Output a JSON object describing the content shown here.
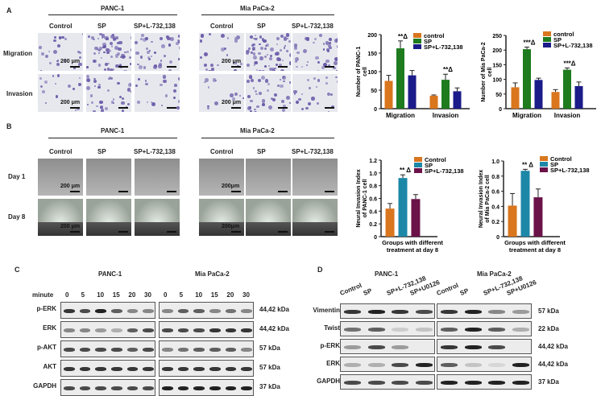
{
  "panels": {
    "a": "A",
    "b": "B",
    "c": "C",
    "d": "D"
  },
  "cells": {
    "panc": "PANC-1",
    "mia": "Mia PaCa-2"
  },
  "groups": [
    "Control",
    "SP",
    "SP+L-732,138"
  ],
  "rowsA": [
    "Migration",
    "Invasion"
  ],
  "rowsB": [
    "Day 1",
    "Day 8"
  ],
  "scale": {
    "a": "200 μm",
    "b1": "200 μm",
    "b2": "200μm"
  },
  "blotC": {
    "minute_label": "minute",
    "minutes": [
      "0",
      "5",
      "10",
      "15",
      "20",
      "30"
    ],
    "rows": [
      "p-ERK",
      "ERK",
      "p-AKT",
      "AKT",
      "GAPDH"
    ],
    "kda": [
      "44,42 kDa",
      "44,42 kDa",
      "57 kDa",
      "57 kDa",
      "37 kDa"
    ]
  },
  "blotD": {
    "lanes": [
      "Control",
      "SP",
      "SP+L-732,138",
      "SP+U0126"
    ],
    "rows": [
      "Vimentin",
      "Twist",
      "p-ERK",
      "ERK",
      "GAPDH"
    ],
    "kda": [
      "57 kDa",
      "22 kDa",
      "44,42 kDa",
      "44,42 kDa",
      "37 kDa"
    ]
  },
  "chart_data": [
    {
      "type": "bar",
      "ylabel": "Number of PANC-1 cell",
      "categories": [
        "Migration",
        "Invasion"
      ],
      "ylim": [
        0,
        200
      ],
      "yticks": [
        0,
        50,
        100,
        150,
        200
      ],
      "series": [
        {
          "name": "control",
          "color": "#d9761e",
          "values": [
            75,
            35
          ],
          "errors": [
            15,
            2
          ]
        },
        {
          "name": "SP",
          "color": "#1e7b1e",
          "values": [
            163,
            78
          ],
          "errors": [
            20,
            15
          ]
        },
        {
          "name": "SP+L-732,138",
          "color": "#1b1b8a",
          "values": [
            90,
            47
          ],
          "errors": [
            13,
            9
          ]
        }
      ],
      "annotations": [
        "**Δ",
        "**Δ"
      ]
    },
    {
      "type": "bar",
      "ylabel": "Number of Mia PaCa-2 cell",
      "categories": [
        "Migration",
        "Invasion"
      ],
      "ylim": [
        0,
        250
      ],
      "yticks": [
        0,
        50,
        100,
        150,
        200,
        250
      ],
      "series": [
        {
          "name": "control",
          "color": "#d9761e",
          "values": [
            73,
            57
          ],
          "errors": [
            15,
            8
          ]
        },
        {
          "name": "SP",
          "color": "#1e7b1e",
          "values": [
            203,
            133
          ],
          "errors": [
            7,
            6
          ]
        },
        {
          "name": "SP+L-732,138",
          "color": "#1b1b8a",
          "values": [
            98,
            77
          ],
          "errors": [
            6,
            14
          ]
        }
      ],
      "annotations": [
        "***Δ",
        "***Δ"
      ]
    },
    {
      "type": "bar",
      "ylabel": "Neural Invasion Index of PANC-1 cell",
      "xlabel": "Groups with different treatment at day 8",
      "categories": [
        ""
      ],
      "ylim": [
        0,
        1.2
      ],
      "yticks": [
        0,
        0.2,
        0.4,
        0.6,
        0.8,
        1.0,
        1.2
      ],
      "series": [
        {
          "name": "Control",
          "color": "#d9761e",
          "values": [
            0.44
          ],
          "errors": [
            0.08
          ]
        },
        {
          "name": "SP",
          "color": "#1d87a8",
          "values": [
            0.92
          ],
          "errors": [
            0.05
          ]
        },
        {
          "name": "SP+L-732,138",
          "color": "#6b1249",
          "values": [
            0.59
          ],
          "errors": [
            0.07
          ]
        }
      ],
      "annotations": [
        "** Δ"
      ]
    },
    {
      "type": "bar",
      "ylabel": "Neural Invasion Index of Mia PaCa-2 cell",
      "xlabel": "Groups with different treatment at day 8",
      "categories": [
        ""
      ],
      "ylim": [
        0,
        1.0
      ],
      "yticks": [
        0,
        0.2,
        0.4,
        0.6,
        0.8,
        1.0
      ],
      "series": [
        {
          "name": "Control",
          "color": "#d9761e",
          "values": [
            0.41
          ],
          "errors": [
            0.16
          ]
        },
        {
          "name": "SP",
          "color": "#1d87a8",
          "values": [
            0.87
          ],
          "errors": [
            0.02
          ]
        },
        {
          "name": "SP+L-732,138",
          "color": "#6b1249",
          "values": [
            0.52
          ],
          "errors": [
            0.11
          ]
        }
      ],
      "annotations": [
        "** Δ"
      ]
    }
  ]
}
